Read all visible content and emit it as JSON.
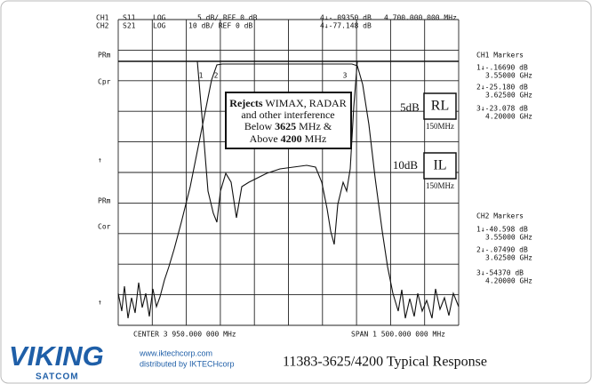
{
  "header": {
    "line1": [
      "CH1",
      "S11",
      "LOG",
      "5 dB/ REF 0 dB",
      "4↓-.09350 dB",
      "4 700.000 000 MHz"
    ],
    "line2": [
      "CH2",
      "S21",
      "LOG",
      "10 dB/ REF 0 dB",
      "4↓-77.148 dB"
    ]
  },
  "left_labels": [
    "PRm",
    "Cpr",
    "↑",
    "PRm",
    "Cor",
    "↑"
  ],
  "markers": {
    "ch1_title": "CH1 Markers",
    "ch1": [
      [
        "1↓-.16690 dB",
        "3.55000 GHz"
      ],
      [
        "2↓-25.180 dB",
        "3.62500 GHz"
      ],
      [
        "3↓-23.078 dB",
        "4.20000 GHz"
      ]
    ],
    "ch2_title": "CH2 Markers",
    "ch2": [
      [
        "1↓-40.598 dB",
        "3.55000 GHz"
      ],
      [
        "2↓-.07490 dB",
        "3.62500 GHz"
      ],
      [
        "3↓-54370 dB",
        "4.20000 GHz"
      ]
    ]
  },
  "plot_marker_labels": [
    "1",
    "2",
    "3"
  ],
  "annotation": {
    "line1_bold": "Rejects",
    "line1": " WIMAX, RADAR",
    "line2": "and other interference",
    "line3": "Below ",
    "line3_bold": "3625",
    "line3_end": " MHz &",
    "line4": "Above ",
    "line4_bold": "4200",
    "line4_end": " MHz"
  },
  "scale_boxes": [
    {
      "scale": "5dB",
      "label": "RL",
      "span": "150MHz"
    },
    {
      "scale": "10dB",
      "label": "IL",
      "span": "150MHz"
    }
  ],
  "footer_axis": {
    "center": "CENTER 3 950.000 000 MHz",
    "span": "SPAN 1 500.000 000 MHz"
  },
  "brand": {
    "name": "VIKING",
    "sub": "SATCOM",
    "link1": "www.iktechcorp.com",
    "link2": "distributed by IKTECHcorp"
  },
  "title": "11383-3625/4200 Typical Response"
}
